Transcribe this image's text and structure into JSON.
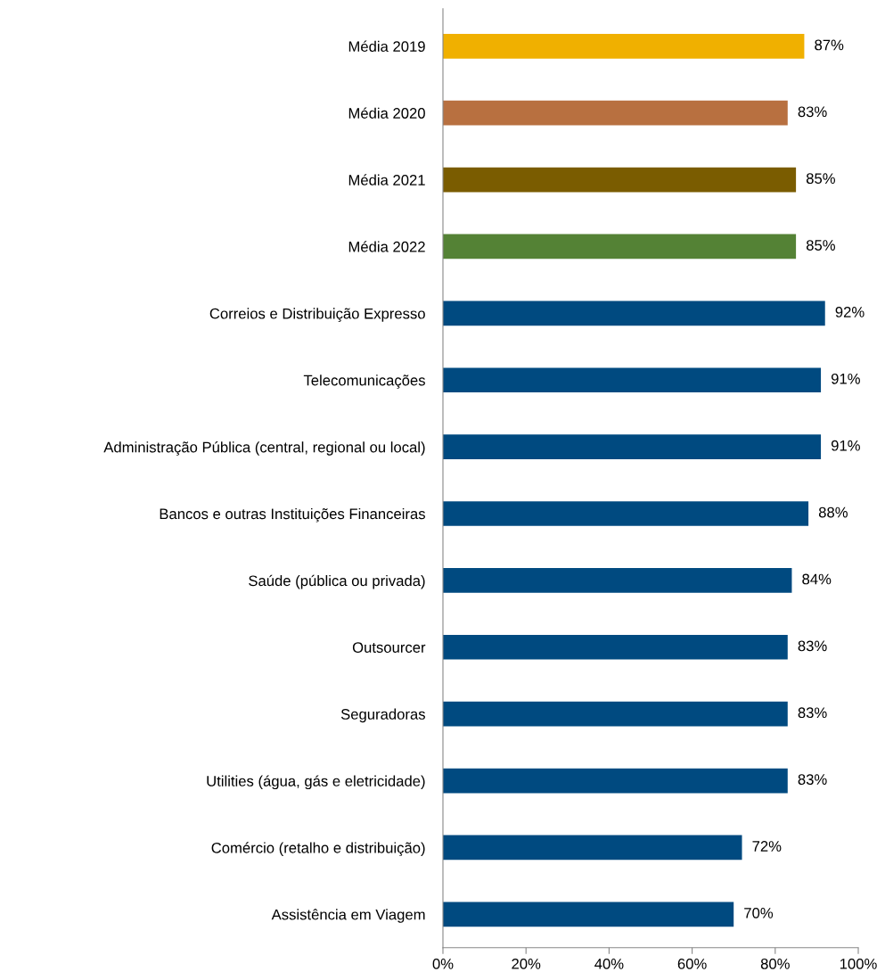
{
  "chart_data": {
    "type": "bar",
    "orientation": "horizontal",
    "categories": [
      "Média 2019",
      "Média 2020",
      "Média 2021",
      "Média 2022",
      "Correios e Distribuição Expresso",
      "Telecomunicações",
      "Administração Pública (central, regional ou local)",
      "Bancos e outras Instituições Financeiras",
      "Saúde (pública ou privada)",
      "Outsourcer",
      "Seguradoras",
      "Utilities (água, gás e eletricidade)",
      "Comércio (retalho e distribuição)",
      "Assistência em Viagem"
    ],
    "values": [
      87,
      83,
      85,
      85,
      92,
      91,
      91,
      88,
      84,
      83,
      83,
      83,
      72,
      70
    ],
    "value_labels": [
      "87%",
      "83%",
      "85%",
      "85%",
      "92%",
      "91%",
      "91%",
      "88%",
      "84%",
      "83%",
      "83%",
      "83%",
      "72%",
      "70%"
    ],
    "colors": [
      "#f0b000",
      "#b87040",
      "#7a5c00",
      "#548235",
      "#004a80",
      "#004a80",
      "#004a80",
      "#004a80",
      "#004a80",
      "#004a80",
      "#004a80",
      "#004a80",
      "#004a80",
      "#004a80"
    ],
    "xlim": [
      0,
      100
    ],
    "xticks": [
      {
        "value": 0,
        "label": "0%"
      },
      {
        "value": 20,
        "label": "20%"
      },
      {
        "value": 40,
        "label": "40%"
      },
      {
        "value": 60,
        "label": "60%"
      },
      {
        "value": 80,
        "label": "80%"
      },
      {
        "value": 100,
        "label": "100%"
      }
    ],
    "grid": false,
    "legend": false
  }
}
